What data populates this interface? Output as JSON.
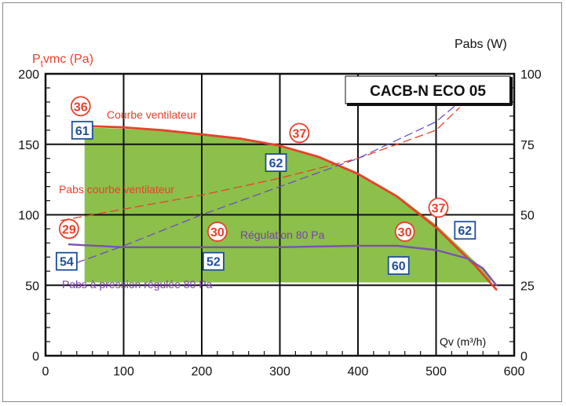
{
  "chart_data": {
    "type": "line",
    "title": "CACB-N ECO 05",
    "ylabel_left": {
      "main": "P",
      "sub": "t",
      "rest": "vmc (Pa)"
    },
    "ylabel_right": "Pabs (W)",
    "xlabel": "Qv (m³/h)",
    "xlim": [
      0,
      600
    ],
    "ylim_left": [
      0,
      200
    ],
    "ylim_right": [
      0,
      100
    ],
    "x_ticks": [
      "0",
      "100",
      "200",
      "300",
      "400",
      "500",
      "600"
    ],
    "y_ticks_left": [
      "0",
      "50",
      "100",
      "150",
      "200"
    ],
    "y_ticks_right": [
      "0",
      "25",
      "50",
      "75",
      "100"
    ],
    "grid": true,
    "colors": {
      "fan_curve": "#e8412c",
      "regulation": "#7a52b0",
      "power_regulated": "#6a4fc0",
      "zone": "#8cc04a",
      "circle": "#e8412c",
      "box": "#1f4f9c"
    },
    "zone": {
      "x": [
        50,
        50,
        100,
        200,
        250,
        300,
        350,
        400,
        450,
        500,
        540,
        570
      ],
      "upper": [
        162,
        162,
        161,
        158,
        154,
        149,
        141,
        130,
        114,
        93,
        72,
        56
      ],
      "lower": [
        52,
        52,
        52,
        52,
        52,
        52,
        52,
        52,
        52,
        52,
        52,
        52
      ]
    },
    "series": [
      {
        "name": "Courbe ventilateur",
        "axis": "left",
        "style": "solid",
        "x": [
          50,
          100,
          150,
          200,
          250,
          300,
          350,
          400,
          450,
          500,
          550,
          577
        ],
        "y": [
          163,
          162,
          160,
          157,
          154,
          149,
          141,
          129,
          113,
          91,
          64,
          47
        ]
      },
      {
        "name": "Régulation 80 Pa",
        "axis": "left",
        "style": "solid",
        "x": [
          30,
          100,
          200,
          300,
          400,
          450,
          500,
          540,
          560,
          577
        ],
        "y": [
          79,
          77,
          77,
          77,
          78,
          78,
          75,
          69,
          62,
          50
        ]
      },
      {
        "name": "Pabs courbe ventilateur",
        "axis": "right",
        "style": "dashed",
        "x": [
          20,
          100,
          200,
          300,
          400,
          500,
          530
        ],
        "y": [
          48,
          52,
          57,
          63,
          70,
          80,
          88
        ]
      },
      {
        "name": "Pabs à pression régulée 80 Pa",
        "axis": "right",
        "style": "dashed",
        "x": [
          40,
          100,
          200,
          300,
          400,
          500,
          530
        ],
        "y": [
          33,
          39,
          50,
          60,
          70,
          83,
          90
        ]
      }
    ],
    "labels": {
      "courbe": "Courbe ventilateur",
      "pabs_courbe": "Pabs courbe ventilateur",
      "regulation": "Régulation 80 Pa",
      "pabs_regulee": "Pabs à pression régulée 80 Pa"
    },
    "circled": [
      {
        "text": "36",
        "x": 45,
        "y": 177
      },
      {
        "text": "37",
        "x": 325,
        "y": 158
      },
      {
        "text": "29",
        "x": 30,
        "y": 90
      },
      {
        "text": "30",
        "x": 220,
        "y": 88
      },
      {
        "text": "30",
        "x": 460,
        "y": 88
      },
      {
        "text": "37",
        "x": 503,
        "y": 105
      }
    ],
    "boxed": [
      {
        "text": "61",
        "x": 47,
        "y": 160
      },
      {
        "text": "62",
        "x": 295,
        "y": 137
      },
      {
        "text": "54",
        "x": 27,
        "y": 67
      },
      {
        "text": "52",
        "x": 215,
        "y": 67
      },
      {
        "text": "60",
        "x": 452,
        "y": 64
      },
      {
        "text": "62",
        "x": 537,
        "y": 89
      }
    ]
  }
}
